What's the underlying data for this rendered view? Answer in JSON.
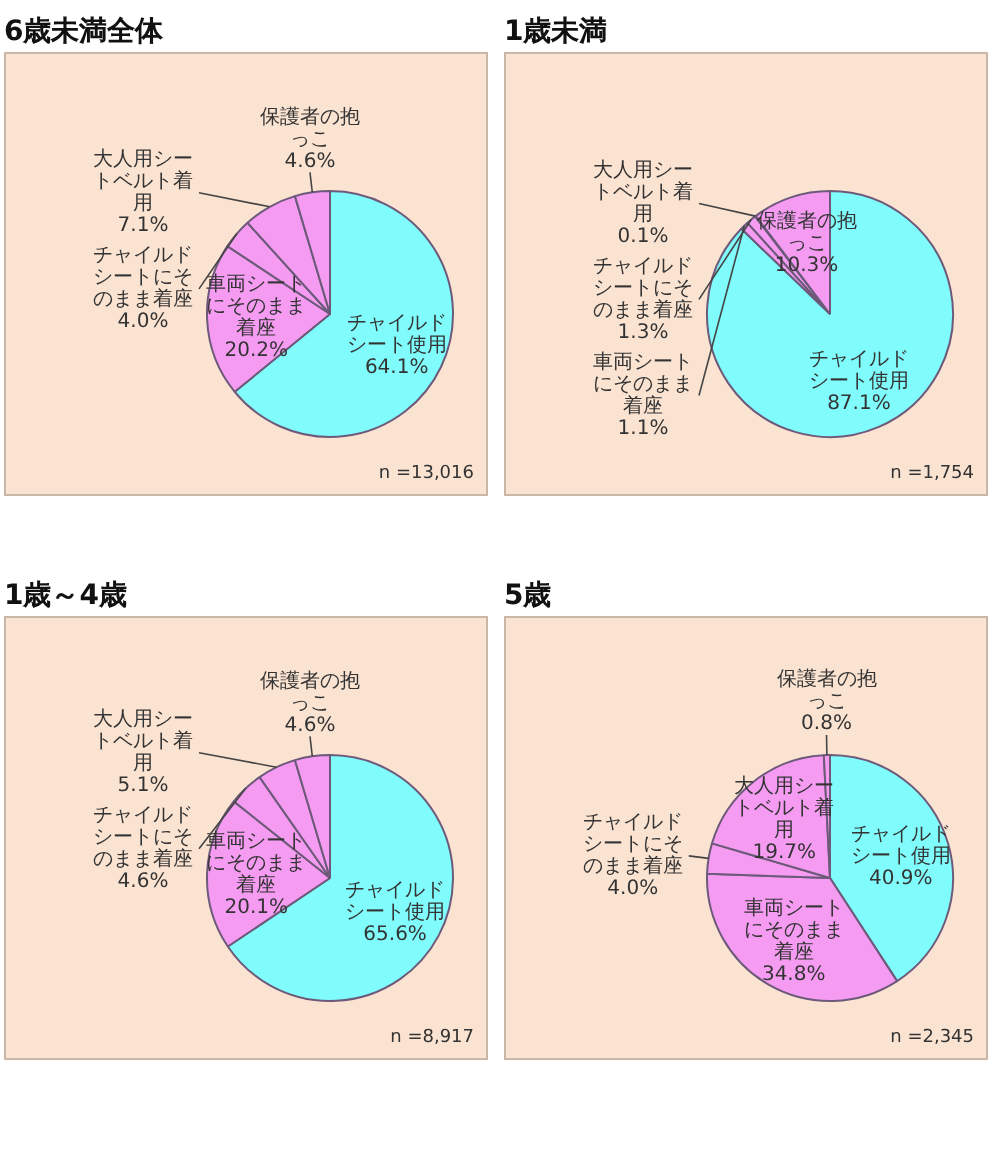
{
  "chart_data": [
    {
      "type": "pie",
      "title": "6歳未満全体",
      "categories": [
        "チャイルドシート使用",
        "車両シートにそのまま着座",
        "チャイルドシートにそのまま着座",
        "大人用シートベルト着用",
        "保護者の抱っこ"
      ],
      "values": [
        64.1,
        20.2,
        4.0,
        7.1,
        4.6
      ],
      "colors": [
        "#80fcfc",
        "#f59cf2",
        "#f59cf2",
        "#f59cf2",
        "#f59cf2"
      ],
      "value_labels": [
        "64.1%",
        "20.2%",
        "4.0%",
        "7.1%",
        "4.6%"
      ],
      "annotations": [
        "n =13,016"
      ]
    },
    {
      "type": "pie",
      "title": "1歳未満",
      "categories": [
        "チャイルドシート使用",
        "車両シートにそのまま着座",
        "チャイルドシートにそのまま着座",
        "大人用シートベルト着用",
        "保護者の抱っこ"
      ],
      "values": [
        87.1,
        1.1,
        1.3,
        0.1,
        10.3
      ],
      "colors": [
        "#80fcfc",
        "#f59cf2",
        "#f59cf2",
        "#f59cf2",
        "#f59cf2"
      ],
      "value_labels": [
        "87.1%",
        "1.1%",
        "1.3%",
        "0.1%",
        "10.3%"
      ],
      "annotations": [
        "n =1,754"
      ]
    },
    {
      "type": "pie",
      "title": "1歳～4歳",
      "categories": [
        "チャイルドシート使用",
        "車両シートにそのまま着座",
        "チャイルドシートにそのまま着座",
        "大人用シートベルト着用",
        "保護者の抱っこ"
      ],
      "values": [
        65.6,
        20.1,
        4.6,
        5.1,
        4.6
      ],
      "colors": [
        "#80fcfc",
        "#f59cf2",
        "#f59cf2",
        "#f59cf2",
        "#f59cf2"
      ],
      "value_labels": [
        "65.6%",
        "20.1%",
        "4.6%",
        "5.1%",
        "4.6%"
      ],
      "annotations": [
        "n =8,917"
      ]
    },
    {
      "type": "pie",
      "title": "5歳",
      "categories": [
        "チャイルドシート使用",
        "車両シートにそのまま着座",
        "チャイルドシートにそのまま着座",
        "大人用シートベルト着用",
        "保護者の抱っこ"
      ],
      "values": [
        40.9,
        34.8,
        4.0,
        19.7,
        0.8
      ],
      "colors": [
        "#80fcfc",
        "#f59cf2",
        "#f59cf2",
        "#f59cf2",
        "#f59cf2"
      ],
      "value_labels": [
        "40.9%",
        "34.8%",
        "4.0%",
        "19.7%",
        "0.8%"
      ],
      "annotations": [
        "n =2,345"
      ]
    }
  ]
}
